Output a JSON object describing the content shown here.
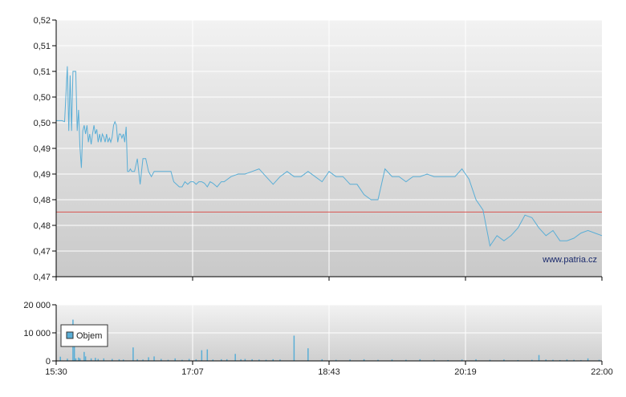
{
  "chart_data": [
    {
      "type": "line",
      "xlabel": "",
      "ylabel": "",
      "x_ticks": [
        "15:30",
        "17:07",
        "18:43",
        "20:19",
        "22:00"
      ],
      "y_ticks": [
        "0,52",
        "0,51",
        "0,51",
        "0,50",
        "0,50",
        "0,49",
        "0,49",
        "0,48",
        "0,48",
        "0,47",
        "0,47"
      ],
      "ylim": [
        0.47,
        0.52
      ],
      "xlim": [
        "15:30",
        "22:00"
      ],
      "grid": true,
      "reference_line": {
        "value": 0.4826,
        "color": "#d9534f"
      },
      "watermark": "www.patria.cz",
      "series": [
        {
          "color": "#5aaed6",
          "x": [
            0,
            2,
            4,
            6,
            8,
            9,
            10,
            11,
            12,
            13,
            14,
            15,
            16,
            17,
            18,
            19,
            20,
            21,
            22,
            23,
            24,
            25,
            26,
            27,
            28,
            29,
            30,
            31,
            32,
            33,
            34,
            35,
            36,
            37,
            38,
            39,
            40,
            41,
            42,
            43,
            44,
            45,
            46,
            47,
            48,
            49,
            50,
            51,
            52,
            53,
            54,
            56,
            58,
            60,
            62,
            64,
            66,
            68,
            70,
            72,
            74,
            76,
            78,
            80,
            82,
            84,
            86,
            88,
            90,
            92,
            94,
            96,
            98,
            100,
            102,
            104,
            106,
            108,
            110,
            112,
            115,
            118,
            120,
            125,
            130,
            135,
            140,
            145,
            150,
            155,
            160,
            165,
            170,
            175,
            180,
            185,
            190,
            195,
            200,
            205,
            210,
            215,
            220,
            225,
            230,
            235,
            240,
            245,
            250,
            255,
            260,
            265,
            270,
            275,
            280,
            285,
            290,
            295,
            300,
            305,
            310,
            315,
            320,
            325,
            330,
            335,
            340,
            345,
            350,
            355,
            360,
            365,
            370,
            375,
            380,
            385,
            390
          ],
          "y": [
            0.5004,
            0.5004,
            0.5004,
            0.5002,
            0.511,
            0.4984,
            0.5092,
            0.4984,
            0.51,
            0.51,
            0.51,
            0.4984,
            0.5025,
            0.4953,
            0.4912,
            0.4984,
            0.4995,
            0.4978,
            0.4995,
            0.4962,
            0.4978,
            0.4958,
            0.4978,
            0.4995,
            0.4978,
            0.4987,
            0.4962,
            0.4978,
            0.4962,
            0.4978,
            0.4972,
            0.4962,
            0.4978,
            0.4962,
            0.497,
            0.4962,
            0.4972,
            0.4995,
            0.5002,
            0.4995,
            0.4962,
            0.4978,
            0.4978,
            0.497,
            0.4978,
            0.4962,
            0.4992,
            0.4905,
            0.4905,
            0.491,
            0.4905,
            0.4905,
            0.493,
            0.488,
            0.493,
            0.493,
            0.4905,
            0.4895,
            0.4905,
            0.4905,
            0.4905,
            0.4905,
            0.4905,
            0.4905,
            0.4905,
            0.4885,
            0.488,
            0.4875,
            0.4875,
            0.4885,
            0.488,
            0.4885,
            0.4885,
            0.488,
            0.4885,
            0.4885,
            0.4882,
            0.4875,
            0.4885,
            0.4882,
            0.4875,
            0.4885,
            0.4885,
            0.4895,
            0.49,
            0.49,
            0.4905,
            0.491,
            0.4895,
            0.488,
            0.4895,
            0.4905,
            0.4895,
            0.4895,
            0.4905,
            0.4895,
            0.4885,
            0.4905,
            0.4895,
            0.4895,
            0.488,
            0.488,
            0.486,
            0.485,
            0.485,
            0.491,
            0.4895,
            0.4895,
            0.4885,
            0.4895,
            0.4895,
            0.49,
            0.4895,
            0.4895,
            0.4895,
            0.4895,
            0.491,
            0.489,
            0.485,
            0.483,
            0.476,
            0.478,
            0.477,
            0.478,
            0.4795,
            0.482,
            0.4815,
            0.4795,
            0.478,
            0.479,
            0.477,
            0.477,
            0.4775,
            0.4785,
            0.479,
            0.4785,
            0.478
          ]
        }
      ]
    },
    {
      "type": "bar",
      "xlabel": "",
      "ylabel": "",
      "y_ticks": [
        "20 000",
        "10 000",
        "0"
      ],
      "ylim": [
        0,
        20000
      ],
      "grid": true,
      "legend": {
        "label": "Objem",
        "position": "top-left"
      },
      "series": [
        {
          "name": "Objem",
          "color": "#5aaed6",
          "x": [
            3,
            8,
            12,
            13,
            14,
            16,
            17,
            20,
            21,
            25,
            28,
            30,
            34,
            40,
            45,
            48,
            55,
            58,
            62,
            66,
            70,
            75,
            80,
            85,
            90,
            95,
            100,
            104,
            108,
            112,
            118,
            122,
            128,
            132,
            135,
            140,
            145,
            150,
            155,
            160,
            170,
            180,
            190,
            200,
            210,
            220,
            230,
            240,
            250,
            260,
            270,
            280,
            290,
            300,
            310,
            320,
            330,
            340,
            345,
            350,
            355,
            360,
            365,
            370,
            375,
            380,
            388
          ],
          "values": [
            1500,
            800,
            14700,
            8500,
            900,
            1200,
            900,
            3200,
            1600,
            900,
            1100,
            700,
            900,
            700,
            600,
            500,
            4800,
            600,
            500,
            1300,
            1600,
            700,
            400,
            900,
            400,
            700,
            600,
            3800,
            4100,
            500,
            600,
            600,
            2500,
            600,
            700,
            600,
            500,
            400,
            600,
            500,
            9000,
            4500,
            600,
            400,
            500,
            600,
            400,
            500,
            400,
            600,
            400,
            300,
            500,
            600,
            400,
            500,
            300,
            400,
            2100,
            500,
            400,
            300,
            500,
            400,
            300,
            900,
            400
          ]
        }
      ]
    }
  ]
}
